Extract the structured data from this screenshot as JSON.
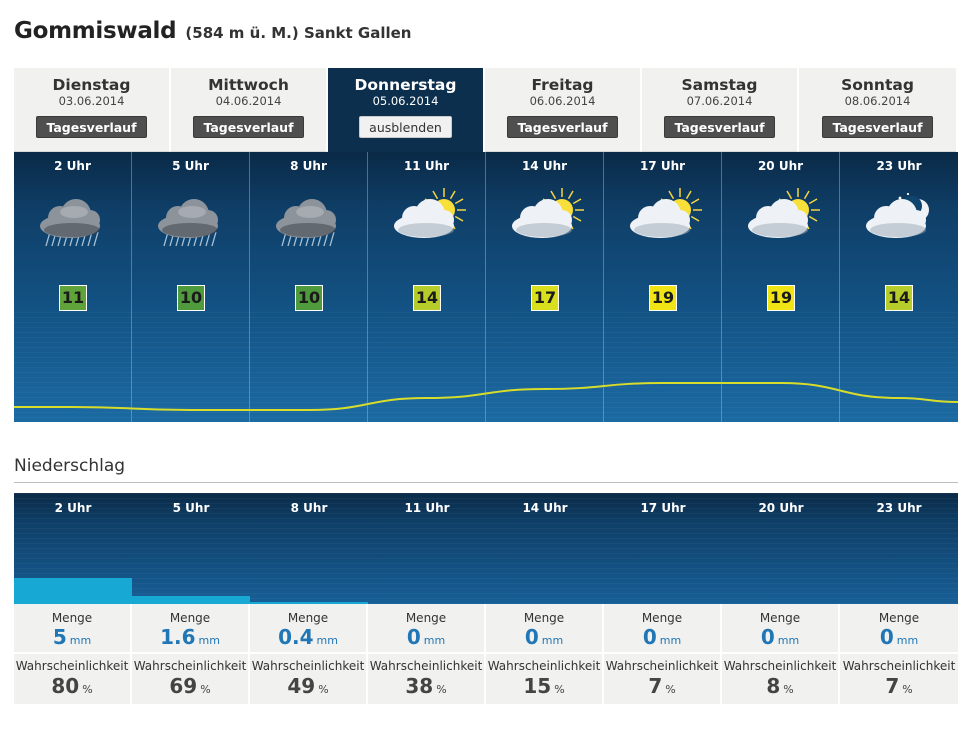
{
  "location": {
    "name": "Gommiswald",
    "detail": "(584 m ü. M.) Sankt Gallen"
  },
  "days": [
    {
      "name": "Dienstag",
      "date": "03.06.2014",
      "button": "Tagesverlauf",
      "active": false
    },
    {
      "name": "Mittwoch",
      "date": "04.06.2014",
      "button": "Tagesverlauf",
      "active": false
    },
    {
      "name": "Donnerstag",
      "date": "05.06.2014",
      "button": "ausblenden",
      "active": true
    },
    {
      "name": "Freitag",
      "date": "06.06.2014",
      "button": "Tagesverlauf",
      "active": false
    },
    {
      "name": "Samstag",
      "date": "07.06.2014",
      "button": "Tagesverlauf",
      "active": false
    },
    {
      "name": "Sonntag",
      "date": "08.06.2014",
      "button": "Tagesverlauf",
      "active": false
    }
  ],
  "forecast": [
    {
      "hour": "2 Uhr",
      "icon": "rain-cloud-icon",
      "temp": "11",
      "temp_color": "#5fa33a"
    },
    {
      "hour": "5 Uhr",
      "icon": "rain-cloud-icon",
      "temp": "10",
      "temp_color": "#4f9a3c"
    },
    {
      "hour": "8 Uhr",
      "icon": "rain-cloud-icon",
      "temp": "10",
      "temp_color": "#4f9a3c"
    },
    {
      "hour": "11 Uhr",
      "icon": "sun-cloud-icon",
      "temp": "14",
      "temp_color": "#b6cc2a"
    },
    {
      "hour": "14 Uhr",
      "icon": "sun-cloud-icon",
      "temp": "17",
      "temp_color": "#d9de1d"
    },
    {
      "hour": "17 Uhr",
      "icon": "sun-cloud-icon",
      "temp": "19",
      "temp_color": "#f0e414"
    },
    {
      "hour": "20 Uhr",
      "icon": "sun-cloud-icon",
      "temp": "19",
      "temp_color": "#f0e414"
    },
    {
      "hour": "23 Uhr",
      "icon": "moon-cloud-icon",
      "temp": "14",
      "temp_color": "#b6cc2a"
    }
  ],
  "precipitation": {
    "title": "Niederschlag",
    "amount_label": "Menge",
    "amount_unit": "mm",
    "probability_label": "Wahrscheinlichkeit",
    "probability_unit": "%",
    "hours": [
      "2 Uhr",
      "5 Uhr",
      "8 Uhr",
      "11 Uhr",
      "14 Uhr",
      "17 Uhr",
      "20 Uhr",
      "23 Uhr"
    ],
    "amounts": [
      "5",
      "1.6",
      "0.4",
      "0",
      "0",
      "0",
      "0",
      "0"
    ],
    "probabilities": [
      "80",
      "69",
      "49",
      "38",
      "15",
      "7",
      "8",
      "7"
    ]
  },
  "colors": {
    "panel_dark": "#0c2f4e",
    "temp_line": "#d8dc2a",
    "precip_bar": "#17a9d3",
    "amount_text": "#2176b5"
  }
}
